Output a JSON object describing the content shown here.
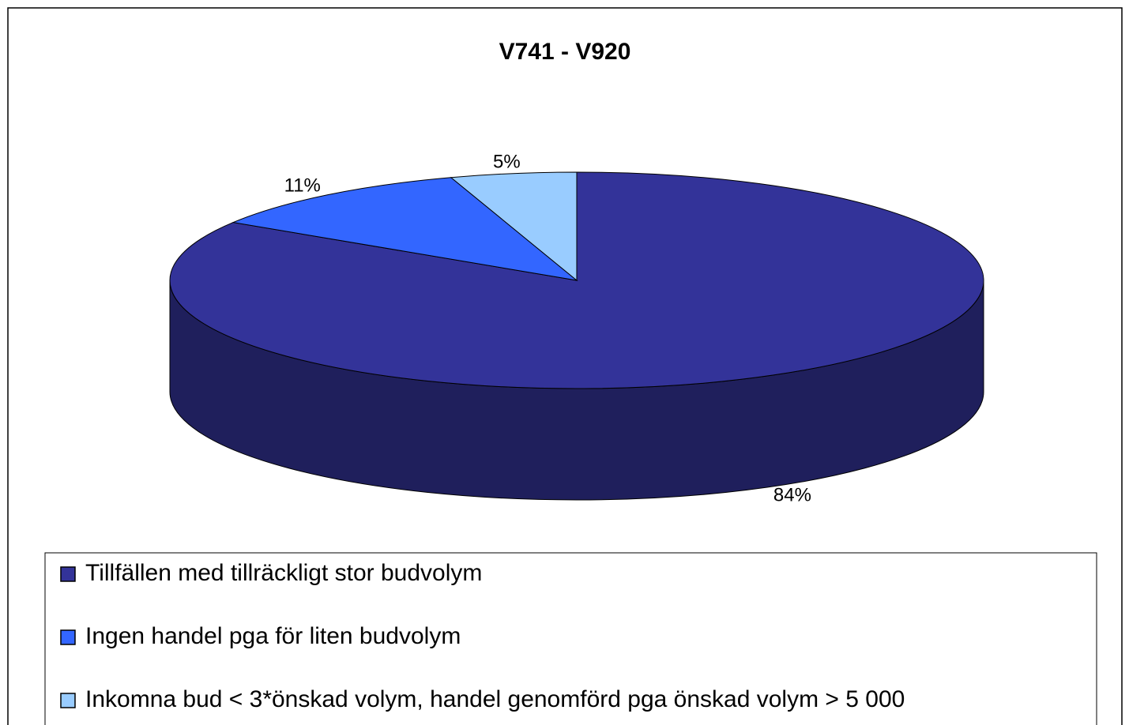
{
  "chart_data": {
    "type": "pie",
    "title": "V741 - V920",
    "categories": [
      "Tillfällen med tillräckligt stor budvolym",
      "Ingen handel pga för liten budvolym",
      "Inkomna bud < 3*önskad volym, handel genomförd pga önskad volym > 5 000"
    ],
    "values": [
      84,
      11,
      5
    ],
    "value_labels": [
      "84%",
      "11%",
      "5%"
    ],
    "colors": [
      "#333399",
      "#3366ff",
      "#99ccff"
    ],
    "legend": "bottom"
  }
}
